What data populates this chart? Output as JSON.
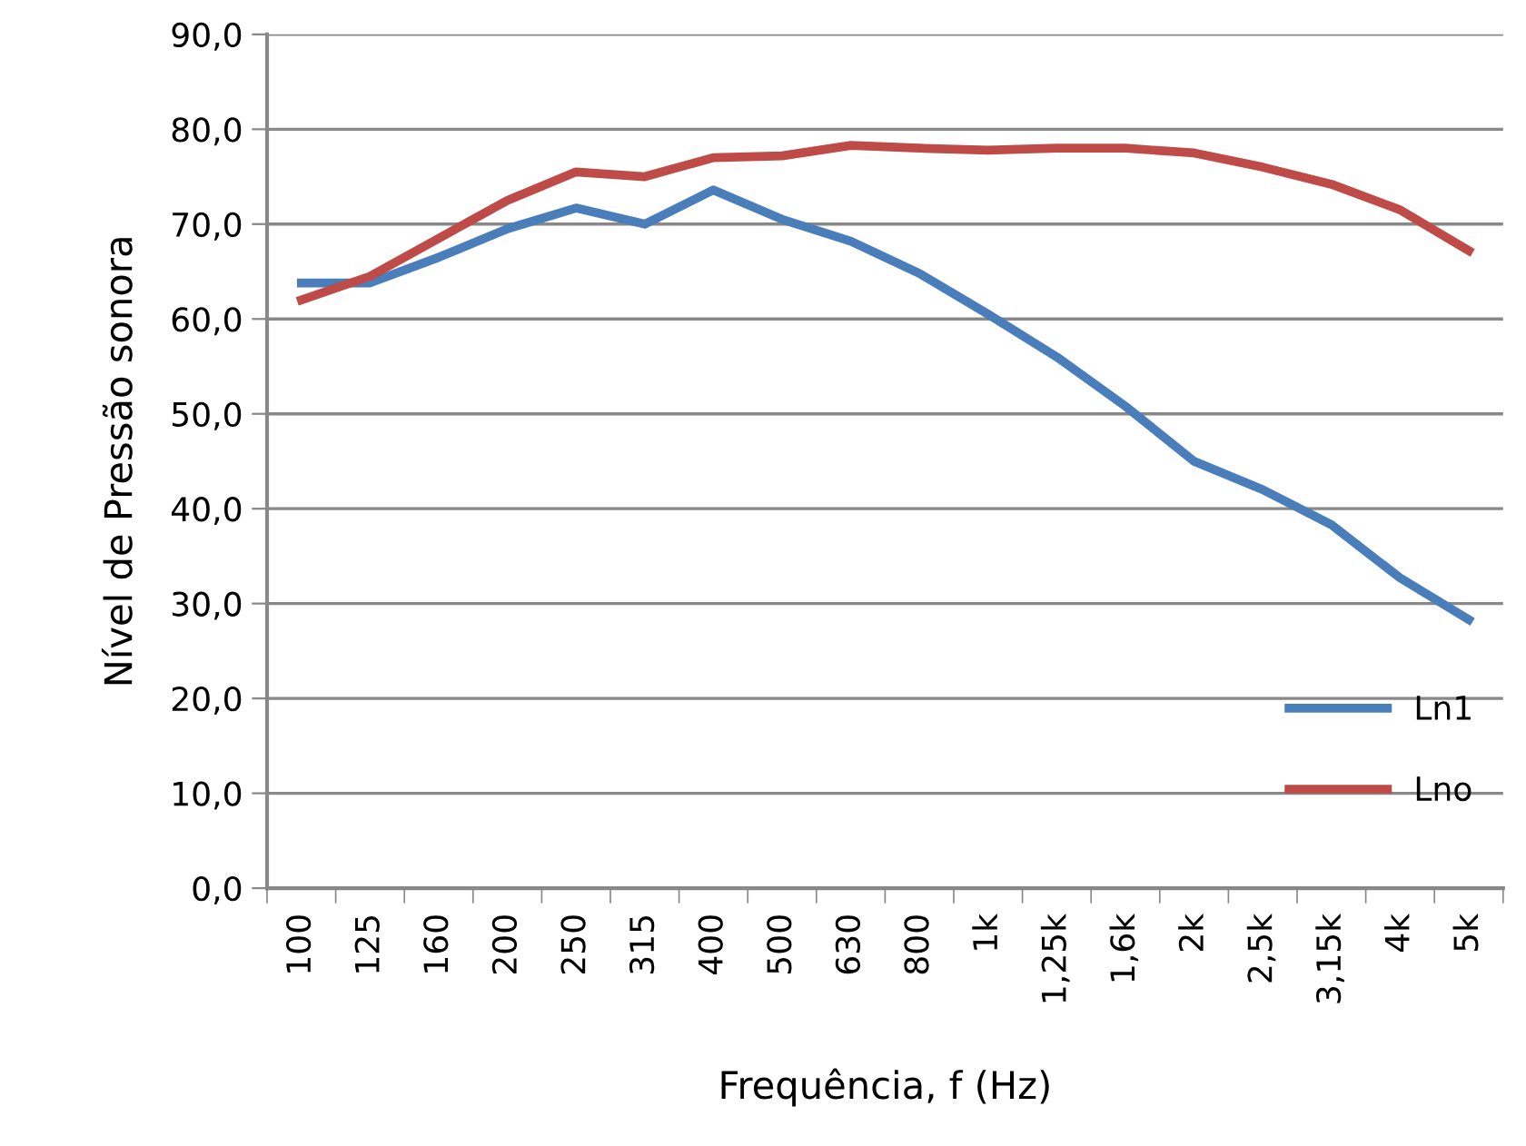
{
  "chart_data": {
    "type": "line",
    "xlabel": "Frequência, f (Hz)",
    "ylabel": "Nível de Pressão sonora",
    "categories": [
      "100",
      "125",
      "160",
      "200",
      "250",
      "315",
      "400",
      "500",
      "630",
      "800",
      "1k",
      "1,25k",
      "1,6k",
      "2k",
      "2,5k",
      "3,15k",
      "4k",
      "5k"
    ],
    "series": [
      {
        "name": "Ln1",
        "color": "#4a7ebb",
        "values": [
          63.8,
          63.8,
          66.5,
          69.5,
          71.7,
          70.0,
          73.6,
          70.5,
          68.2,
          64.8,
          60.5,
          56.0,
          50.8,
          45.0,
          42.0,
          38.3,
          32.7,
          28.3
        ]
      },
      {
        "name": "Lno",
        "color": "#be4b48",
        "values": [
          62.0,
          64.5,
          68.5,
          72.5,
          75.5,
          75.0,
          77.0,
          77.2,
          78.3,
          78.0,
          77.8,
          78.0,
          78.0,
          77.5,
          76.0,
          74.2,
          71.5,
          67.2
        ]
      }
    ],
    "ylim": [
      0,
      90
    ],
    "yticks": [
      {
        "value": 0,
        "label": "0,0"
      },
      {
        "value": 10,
        "label": "10,0"
      },
      {
        "value": 20,
        "label": "20,0"
      },
      {
        "value": 30,
        "label": "30,0"
      },
      {
        "value": 40,
        "label": "40,0"
      },
      {
        "value": 50,
        "label": "50,0"
      },
      {
        "value": 60,
        "label": "60,0"
      },
      {
        "value": 70,
        "label": "70,0"
      },
      {
        "value": 80,
        "label": "80,0"
      },
      {
        "value": 90,
        "label": "90,0"
      }
    ],
    "grid": "y",
    "legend": "bottom right",
    "marker": "none",
    "line_style": "solid"
  }
}
